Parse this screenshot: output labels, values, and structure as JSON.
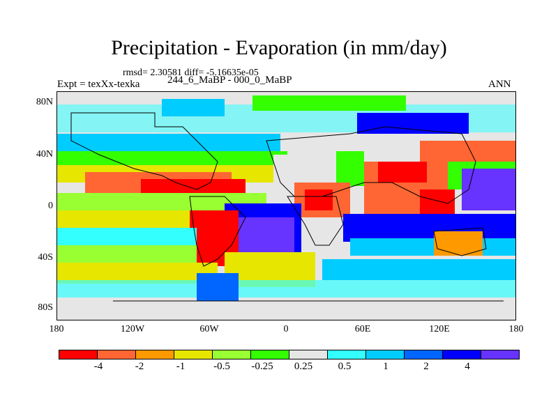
{
  "title": "Precipitation - Evaporation (in mm/day)",
  "stats": "rmsd= 2.30581 diff= -5.16635e-05",
  "expt": "Expt = texXx-texka",
  "years": "244_6_MaBP - 000_0_MaBP",
  "season": "ANN",
  "lat_ticks": [
    "80N",
    "40N",
    "0",
    "40S",
    "80S"
  ],
  "lon_ticks": [
    "180",
    "120W",
    "60W",
    "0",
    "60E",
    "120E",
    "180"
  ],
  "colorbar": {
    "colors": [
      "#ff0000",
      "#ff6633",
      "#ff9900",
      "#e6e600",
      "#99ff33",
      "#33ff00",
      "#e6e6e6",
      "#33ffff",
      "#00ccff",
      "#0066ff",
      "#0000ff",
      "#6633ff"
    ],
    "labels": [
      "-4",
      "-2",
      "-1",
      "-0.5",
      "-0.25",
      "0.25",
      "0.5",
      "1",
      "2",
      "4"
    ]
  }
}
